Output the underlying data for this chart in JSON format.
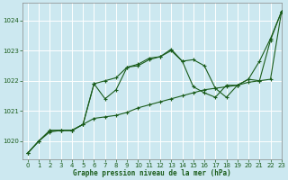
{
  "title": "Graphe pression niveau de la mer (hPa)",
  "background_color": "#cce8f0",
  "grid_color": "#b0d8e0",
  "line_color": "#1a5c1a",
  "xlim": [
    -0.5,
    23
  ],
  "ylim": [
    1019.4,
    1024.6
  ],
  "yticks": [
    1020,
    1021,
    1022,
    1023,
    1024
  ],
  "xticks": [
    0,
    1,
    2,
    3,
    4,
    5,
    6,
    7,
    8,
    9,
    10,
    11,
    12,
    13,
    14,
    15,
    16,
    17,
    18,
    19,
    20,
    21,
    22,
    23
  ],
  "series": [
    [
      1019.6,
      1020.0,
      1020.3,
      1020.35,
      1020.35,
      1020.55,
      1020.75,
      1020.8,
      1020.85,
      1020.95,
      1021.1,
      1021.2,
      1021.3,
      1021.4,
      1021.5,
      1021.6,
      1021.7,
      1021.75,
      1021.8,
      1021.85,
      1021.95,
      1022.0,
      1022.05,
      1024.3
    ],
    [
      1019.6,
      1020.0,
      1020.35,
      1020.35,
      1020.35,
      1020.55,
      1021.9,
      1021.4,
      1021.7,
      1022.45,
      1022.5,
      1022.7,
      1022.8,
      1023.0,
      1022.65,
      1021.8,
      1021.6,
      1021.45,
      1021.85,
      1021.85,
      1022.05,
      1022.0,
      1023.35,
      1024.3
    ],
    [
      1019.6,
      1020.0,
      1020.35,
      1020.35,
      1020.35,
      1020.55,
      1021.9,
      1022.0,
      1022.1,
      1022.45,
      1022.55,
      1022.75,
      1022.8,
      1023.05,
      1022.65,
      1022.7,
      1022.5,
      1021.75,
      1021.45,
      1021.85,
      1022.05,
      1022.65,
      1023.4,
      1024.3
    ]
  ]
}
